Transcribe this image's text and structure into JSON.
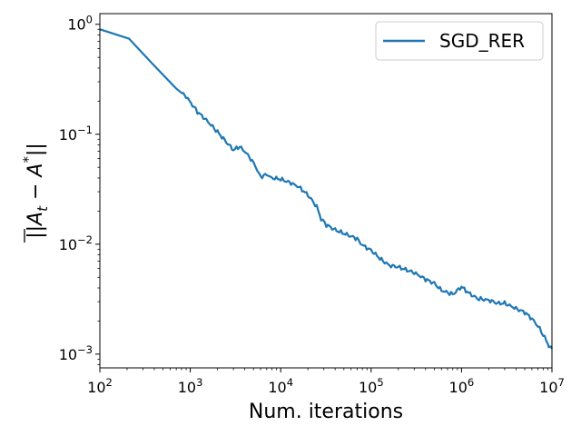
{
  "chart_data": {
    "type": "line",
    "title": "",
    "xlabel": "Num. iterations",
    "ylabel": "||A̅_t − A^*||",
    "xscale": "log",
    "yscale": "log",
    "xlim": [
      100,
      10000000
    ],
    "ylim": [
      0.00075,
      1.25
    ],
    "grid": false,
    "legend_position": "top-right",
    "x_ticks": [
      {
        "base": "10",
        "exp": "2",
        "value": 100
      },
      {
        "base": "10",
        "exp": "3",
        "value": 1000
      },
      {
        "base": "10",
        "exp": "4",
        "value": 10000
      },
      {
        "base": "10",
        "exp": "5",
        "value": 100000
      },
      {
        "base": "10",
        "exp": "6",
        "value": 1000000
      },
      {
        "base": "10",
        "exp": "7",
        "value": 10000000
      }
    ],
    "y_ticks": [
      {
        "base": "10",
        "exp": "0",
        "value": 1
      },
      {
        "base": "10",
        "exp": "−1",
        "value": 0.1
      },
      {
        "base": "10",
        "exp": "−2",
        "value": 0.01
      },
      {
        "base": "10",
        "exp": "−3",
        "value": 0.001
      }
    ],
    "series": [
      {
        "name": "SGD_RER",
        "color": "#1f77b4",
        "x": [
          100,
          210,
          400,
          700,
          900,
          1200,
          1500,
          2000,
          2500,
          3000,
          3500,
          4000,
          4500,
          5000,
          5500,
          6000,
          7000,
          8000,
          10000,
          13000,
          16000,
          20000,
          25000,
          28000,
          32000,
          40000,
          50000,
          60000,
          70000,
          80000,
          100000,
          130000,
          160000,
          200000,
          250000,
          300000,
          400000,
          500000,
          600000,
          800000,
          1000000,
          1200000,
          1500000,
          2000000,
          2500000,
          3000000,
          4000000,
          5000000,
          6000000,
          7000000,
          8000000,
          9000000,
          9500000,
          10000000
        ],
        "values": [
          0.9,
          0.74,
          0.42,
          0.26,
          0.22,
          0.16,
          0.135,
          0.105,
          0.085,
          0.072,
          0.077,
          0.07,
          0.062,
          0.055,
          0.047,
          0.041,
          0.043,
          0.04,
          0.039,
          0.036,
          0.033,
          0.028,
          0.022,
          0.017,
          0.015,
          0.0135,
          0.0125,
          0.0118,
          0.0112,
          0.0098,
          0.0088,
          0.0072,
          0.0064,
          0.0062,
          0.0058,
          0.0055,
          0.0048,
          0.0044,
          0.0038,
          0.0035,
          0.0041,
          0.0036,
          0.0032,
          0.0031,
          0.0029,
          0.0029,
          0.0026,
          0.0024,
          0.0021,
          0.0018,
          0.0015,
          0.00125,
          0.00115,
          0.00112
        ]
      }
    ]
  }
}
